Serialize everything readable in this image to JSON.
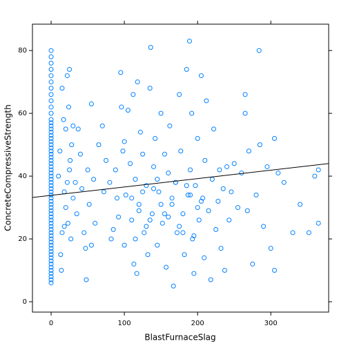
{
  "chart_data": {
    "type": "scatter",
    "xlabel": "BlastFurnaceSlag",
    "ylabel": "ConcreteCompressiveStrength",
    "xlim": [
      -25.5,
      379
    ],
    "ylim": [
      -3.3,
      88.4
    ],
    "xticks": [
      0,
      100,
      200,
      300
    ],
    "yticks": [
      0,
      20,
      40,
      60,
      80
    ],
    "color": "#0080ff",
    "line_color": "#000000",
    "regression": {
      "x": [
        -25.5,
        379
      ],
      "y": [
        33.2,
        44.0
      ]
    },
    "series": [
      {
        "name": "points",
        "x": [
          0,
          0,
          0,
          0,
          0,
          0,
          0,
          0,
          0,
          0,
          0,
          0,
          0,
          0,
          0,
          0,
          0,
          0,
          0,
          0,
          0,
          0,
          0,
          0,
          0,
          0,
          0,
          0,
          0,
          0,
          0,
          0,
          0,
          0,
          0,
          0,
          0,
          0,
          0,
          0,
          0,
          0,
          0,
          0,
          0,
          0,
          0,
          0,
          0,
          0,
          0,
          0,
          0,
          0,
          0,
          0,
          0,
          0,
          0,
          0,
          0,
          0,
          0,
          0,
          13,
          15,
          18,
          20,
          22,
          25,
          20,
          24,
          15,
          22,
          25,
          14,
          18,
          26,
          28,
          30,
          12,
          17,
          23,
          27,
          10,
          30,
          33,
          35,
          37,
          40,
          42,
          45,
          47,
          48,
          50,
          52,
          55,
          55,
          58,
          60,
          65,
          70,
          72,
          75,
          80,
          82,
          85,
          88,
          90,
          92,
          95,
          96,
          98,
          100,
          100,
          102,
          105,
          108,
          110,
          112,
          113,
          115,
          117,
          118,
          120,
          122,
          125,
          127,
          130,
          132,
          135,
          136,
          138,
          140,
          142,
          145,
          147,
          150,
          152,
          155,
          157,
          160,
          162,
          165,
          167,
          170,
          172,
          175,
          177,
          180,
          182,
          185,
          187,
          189,
          190,
          192,
          193,
          195,
          197,
          200,
          202,
          205,
          207,
          209,
          210,
          212,
          215,
          218,
          220,
          222,
          225,
          228,
          230,
          232,
          235,
          237,
          240,
          243,
          246,
          250,
          255,
          260,
          265,
          265,
          268,
          270,
          275,
          280,
          284,
          285,
          290,
          295,
          300,
          305,
          305,
          310,
          318,
          330,
          340,
          352,
          365,
          360,
          365,
          110,
          120,
          130,
          140,
          150,
          160,
          170,
          180,
          190,
          200,
          115,
          125,
          135,
          145,
          155,
          165,
          175,
          185,
          195,
          205
        ],
        "values": [
          6,
          7,
          8,
          9,
          10,
          11,
          12,
          13,
          14,
          15,
          16,
          17,
          18,
          19,
          20,
          21,
          22,
          23,
          24,
          25,
          26,
          27,
          28,
          29,
          30,
          31,
          32,
          33,
          34,
          35,
          36,
          37,
          38,
          39,
          40,
          41,
          42,
          43,
          44,
          45,
          46,
          47,
          48,
          49,
          50,
          51,
          52,
          53,
          54,
          55,
          56,
          57,
          58,
          60,
          62,
          64,
          66,
          68,
          70,
          72,
          74,
          76,
          78,
          80,
          15,
          22,
          24,
          30,
          38,
          42,
          55,
          62,
          68,
          72,
          74,
          10,
          35,
          45,
          50,
          33,
          48,
          58,
          25,
          20,
          40,
          56,
          38,
          28,
          55,
          47,
          36,
          22,
          17,
          7,
          42,
          31,
          63,
          18,
          39,
          25,
          50,
          56,
          35,
          45,
          38,
          20,
          23,
          42,
          33,
          27,
          73,
          62,
          48,
          51,
          18,
          34,
          61,
          44,
          26,
          66,
          12,
          39,
          9,
          70,
          31,
          54,
          47,
          22,
          37,
          15,
          68,
          81,
          28,
          43,
          52,
          18,
          35,
          60,
          25,
          47,
          11,
          41,
          56,
          31,
          5,
          38,
          22,
          66,
          48,
          28,
          15,
          74,
          34,
          83,
          42,
          60,
          20,
          9,
          37,
          52,
          26,
          72,
          33,
          14,
          45,
          64,
          29,
          7,
          39,
          55,
          23,
          32,
          42,
          17,
          36,
          10,
          43,
          26,
          35,
          44,
          30,
          41,
          66,
          60,
          29,
          48,
          12,
          34,
          80,
          50,
          24,
          43,
          17,
          52,
          10,
          41,
          38,
          22,
          31,
          22,
          25,
          40,
          42,
          33,
          29,
          24,
          36,
          31,
          27,
          38,
          22,
          34,
          30,
          20,
          35,
          26,
          39,
          28,
          33,
          24,
          37,
          21,
          32
        ]
      }
    ]
  }
}
